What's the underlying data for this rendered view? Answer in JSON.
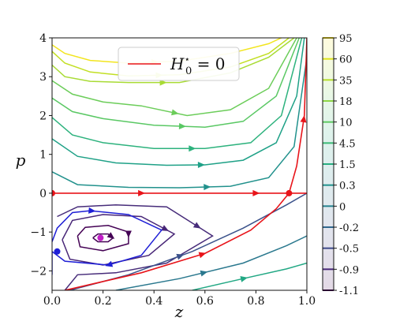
{
  "chart_data": {
    "type": "line",
    "xlabel": "z",
    "ylabel": "p",
    "xlim": [
      0.0,
      1.0
    ],
    "ylim": [
      -2.5,
      4.0
    ],
    "xticks": [
      "0.0",
      "0.2",
      "0.4",
      "0.6",
      "0.8",
      "1.0"
    ],
    "yticks": [
      "−2",
      "−1",
      "0",
      "1",
      "2",
      "3",
      "4"
    ],
    "legend": {
      "label_main": "H",
      "label_sub": "0",
      "label_sup": "⋆",
      "label_rest": " = 0",
      "color": "#e8141a",
      "position": "upper-center"
    },
    "colorbar": {
      "levels": [
        "95",
        "60",
        "35",
        "18",
        "10",
        "4.5",
        "1.5",
        "0.3",
        "0",
        "-0.2",
        "-0.5",
        "-0.9",
        "-1.1"
      ],
      "colormap": "viridis"
    },
    "fixed_points": [
      {
        "z": 0.0,
        "p": 0.0,
        "color": "#e8141a"
      },
      {
        "z": 0.93,
        "p": 0.0,
        "color": "#e8141a"
      },
      {
        "z": 0.19,
        "p": -1.15,
        "color": "#c21ec8"
      },
      {
        "z": 0.02,
        "p": -1.5,
        "color": "#1f1fd6"
      }
    ],
    "contour_series": [
      {
        "level": "95",
        "color": "#f2e51e",
        "points": [
          [
            0.0,
            3.82
          ],
          [
            0.05,
            3.6
          ],
          [
            0.15,
            3.42
          ],
          [
            0.3,
            3.35
          ],
          [
            0.5,
            3.4
          ],
          [
            0.7,
            3.6
          ],
          [
            0.85,
            3.85
          ],
          [
            0.9,
            4.0
          ]
        ]
      },
      {
        "level": "60",
        "color": "#c2df23",
        "points": [
          [
            0.0,
            3.65
          ],
          [
            0.05,
            3.35
          ],
          [
            0.15,
            3.12
          ],
          [
            0.3,
            3.02
          ],
          [
            0.5,
            3.05
          ],
          [
            0.7,
            3.25
          ],
          [
            0.85,
            3.6
          ],
          [
            0.93,
            4.0
          ]
        ]
      },
      {
        "level": "35",
        "color": "#a8db34",
        "points": [
          [
            0.0,
            3.3
          ],
          [
            0.05,
            3.0
          ],
          [
            0.15,
            2.88
          ],
          [
            0.3,
            2.85
          ],
          [
            0.5,
            2.85
          ],
          [
            0.7,
            3.1
          ],
          [
            0.85,
            3.5
          ],
          [
            0.95,
            4.0
          ]
        ]
      },
      {
        "level": "18",
        "color": "#6ccd5a",
        "points": [
          [
            0.0,
            2.9
          ],
          [
            0.08,
            2.55
          ],
          [
            0.2,
            2.35
          ],
          [
            0.35,
            2.25
          ],
          [
            0.53,
            2.0
          ],
          [
            0.7,
            2.15
          ],
          [
            0.85,
            2.7
          ],
          [
            0.96,
            4.0
          ]
        ]
      },
      {
        "level": "10",
        "color": "#5ac864",
        "points": [
          [
            0.0,
            2.45
          ],
          [
            0.08,
            2.1
          ],
          [
            0.2,
            1.92
          ],
          [
            0.4,
            1.75
          ],
          [
            0.6,
            1.7
          ],
          [
            0.75,
            1.85
          ],
          [
            0.88,
            2.5
          ],
          [
            0.97,
            4.0
          ]
        ]
      },
      {
        "level": "4.5",
        "color": "#2db27d",
        "points": [
          [
            0.0,
            1.95
          ],
          [
            0.08,
            1.5
          ],
          [
            0.2,
            1.3
          ],
          [
            0.4,
            1.15
          ],
          [
            0.6,
            1.15
          ],
          [
            0.78,
            1.3
          ],
          [
            0.9,
            2.0
          ],
          [
            0.98,
            4.0
          ]
        ]
      },
      {
        "level": "1.5",
        "color": "#1fa187",
        "points": [
          [
            0.0,
            1.4
          ],
          [
            0.1,
            0.95
          ],
          [
            0.25,
            0.78
          ],
          [
            0.45,
            0.72
          ],
          [
            0.6,
            0.73
          ],
          [
            0.75,
            0.85
          ],
          [
            0.88,
            1.3
          ],
          [
            0.96,
            2.5
          ],
          [
            0.99,
            4.0
          ]
        ]
      },
      {
        "level": "0.3",
        "color": "#21918c",
        "points": [
          [
            0.0,
            0.55
          ],
          [
            0.1,
            0.22
          ],
          [
            0.3,
            0.15
          ],
          [
            0.5,
            0.14
          ],
          [
            0.7,
            0.18
          ],
          [
            0.85,
            0.4
          ],
          [
            0.95,
            1.2
          ],
          [
            1.0,
            3.5
          ]
        ]
      },
      {
        "level": "-0.2",
        "color": "#472c7a",
        "points": [
          [
            0.02,
            -0.6
          ],
          [
            0.1,
            -0.35
          ],
          [
            0.25,
            -0.3
          ],
          [
            0.45,
            -0.35
          ],
          [
            0.63,
            -1.1
          ],
          [
            0.45,
            -1.8
          ],
          [
            0.25,
            -2.05
          ],
          [
            0.1,
            -2.1
          ],
          [
            0.05,
            -2.5
          ]
        ]
      },
      {
        "level": "-0.5",
        "color": "#482677",
        "points": [
          [
            0.04,
            -1.2
          ],
          [
            0.08,
            -0.7
          ],
          [
            0.2,
            -0.55
          ],
          [
            0.35,
            -0.6
          ],
          [
            0.48,
            -1.05
          ],
          [
            0.38,
            -1.6
          ],
          [
            0.2,
            -1.85
          ],
          [
            0.07,
            -1.7
          ],
          [
            0.04,
            -1.2
          ]
        ]
      },
      {
        "level": "-0.9",
        "color": "#440154",
        "points": [
          [
            0.1,
            -1.1
          ],
          [
            0.13,
            -0.88
          ],
          [
            0.22,
            -0.83
          ],
          [
            0.3,
            -1.0
          ],
          [
            0.3,
            -1.3
          ],
          [
            0.2,
            -1.48
          ],
          [
            0.11,
            -1.38
          ],
          [
            0.1,
            -1.1
          ]
        ]
      },
      {
        "level": "-1.1",
        "color": "#440154",
        "points": [
          [
            0.16,
            -1.15
          ],
          [
            0.18,
            -1.05
          ],
          [
            0.22,
            -1.05
          ],
          [
            0.24,
            -1.15
          ],
          [
            0.22,
            -1.25
          ],
          [
            0.18,
            -1.25
          ],
          [
            0.16,
            -1.15
          ]
        ]
      },
      {
        "level": "0.3",
        "color": "#3b528b",
        "points": [
          [
            0.07,
            -2.5
          ],
          [
            0.3,
            -2.1
          ],
          [
            0.55,
            -1.5
          ],
          [
            0.75,
            -0.9
          ],
          [
            0.92,
            -0.3
          ],
          [
            1.0,
            0.0
          ]
        ]
      },
      {
        "level": "1.5",
        "color": "#2a788e",
        "points": [
          [
            0.25,
            -2.5
          ],
          [
            0.5,
            -2.2
          ],
          [
            0.75,
            -1.8
          ],
          [
            0.92,
            -1.35
          ],
          [
            1.0,
            -1.1
          ]
        ]
      },
      {
        "level": "4.5",
        "color": "#22a884",
        "points": [
          [
            0.55,
            -2.5
          ],
          [
            0.75,
            -2.2
          ],
          [
            0.92,
            -1.95
          ],
          [
            1.0,
            -1.8
          ]
        ]
      }
    ],
    "separatrix_blue": {
      "color": "#1f1fd6",
      "points": [
        [
          0.0,
          -1.25
        ],
        [
          0.02,
          -0.9
        ],
        [
          0.08,
          -0.5
        ],
        [
          0.15,
          -0.45
        ],
        [
          0.3,
          -0.55
        ],
        [
          0.43,
          -0.95
        ],
        [
          0.35,
          -1.6
        ],
        [
          0.22,
          -1.85
        ],
        [
          0.05,
          -1.75
        ],
        [
          0.0,
          -1.5
        ],
        [
          0.0,
          -2.1
        ]
      ]
    },
    "separatrix_red": [
      {
        "color": "#e8141a",
        "points": [
          [
            0.0,
            0.0
          ],
          [
            1.0,
            0.0
          ]
        ]
      },
      {
        "color": "#e8141a",
        "points": [
          [
            0.05,
            -2.5
          ],
          [
            0.35,
            -2.05
          ],
          [
            0.6,
            -1.55
          ],
          [
            0.78,
            -0.95
          ],
          [
            0.88,
            -0.4
          ],
          [
            0.93,
            0.0
          ],
          [
            0.96,
            0.7
          ],
          [
            0.99,
            2.0
          ],
          [
            1.0,
            4.0
          ]
        ]
      }
    ]
  }
}
